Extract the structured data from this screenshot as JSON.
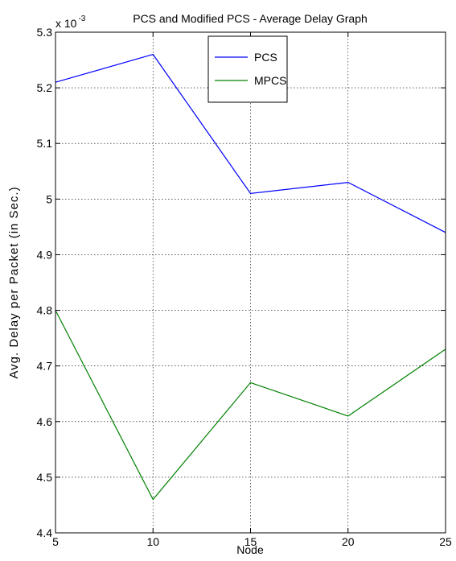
{
  "chart_data": {
    "type": "line",
    "title": "PCS and Modified PCS - Average Delay Graph",
    "xlabel": "Node",
    "ylabel": "Avg. Delay per Packet (in Sec.)",
    "y_multiplier_base": "x 10",
    "y_multiplier_exp": "-3",
    "x": [
      5,
      10,
      15,
      20,
      25
    ],
    "x_ticks": [
      "5",
      "10",
      "15",
      "20",
      "25"
    ],
    "y_ticks": [
      "4.4",
      "4.5",
      "4.6",
      "4.7",
      "4.8",
      "4.9",
      "5",
      "5.1",
      "5.2",
      "5.3"
    ],
    "xlim": [
      5,
      25
    ],
    "ylim": [
      4.4,
      5.3
    ],
    "grid": true,
    "legend_position": "top-center",
    "series": [
      {
        "name": "PCS",
        "color": "#0000ff",
        "values": [
          5.21,
          5.26,
          5.01,
          5.03,
          4.94
        ]
      },
      {
        "name": "MPCS",
        "color": "#008000",
        "values": [
          4.8,
          4.46,
          4.67,
          4.61,
          4.73
        ]
      }
    ]
  }
}
